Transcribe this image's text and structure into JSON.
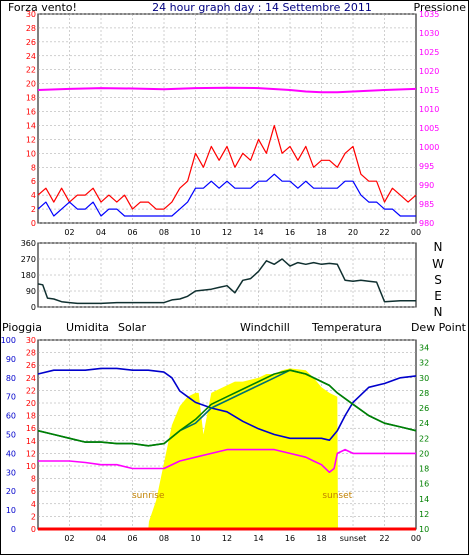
{
  "colors": {
    "wind_speed": "#ff0000",
    "wind_gust_avg": "#0000ff",
    "pressure": "#ff00ff",
    "rain": "#ff0000",
    "humidity": "#0000cc",
    "solar": "#ffff00",
    "windchill": "#007070",
    "temperature": "#008000",
    "dew_point": "#ff00ff",
    "grid": "#a0a0a0"
  },
  "header": {
    "left_label": "Forza vento!",
    "title": "24 hour graph day : 14 Settembre 2011",
    "right_label": "Pressione"
  },
  "panel2": {
    "compass_labels": [
      "N",
      "W",
      "S",
      "E",
      "N"
    ]
  },
  "panel3": {
    "labels": {
      "rain": "Pioggia",
      "humidity": "Umidita",
      "solar": "Solar",
      "windchill": "Windchill",
      "temperature": "Temperatura",
      "dew_point": "Dew Point"
    },
    "sunrise_label": "sunrise",
    "sunset_label": "sunset",
    "sunset_tick_label": "sunset"
  },
  "chart_data": [
    {
      "type": "line",
      "name": "wind-speed-pressure",
      "x_unit": "hour",
      "xlim": [
        0,
        24
      ],
      "x_ticks": [
        "02",
        "04",
        "06",
        "08",
        "10",
        "12",
        "14",
        "16",
        "18",
        "20",
        "22",
        "00"
      ],
      "left_axis": {
        "ylim": [
          0,
          30
        ],
        "ticks": [
          0,
          2,
          4,
          6,
          8,
          10,
          12,
          14,
          16,
          18,
          20,
          22,
          24,
          26,
          28,
          30
        ]
      },
      "right_axis": {
        "ylim": [
          980,
          1035
        ],
        "ticks": [
          980,
          985,
          990,
          995,
          1000,
          1005,
          1010,
          1015,
          1020,
          1025,
          1030,
          1035
        ]
      },
      "series": [
        {
          "key": "wind_speed",
          "axis": "left",
          "x": [
            0,
            0.5,
            1,
            1.5,
            2,
            2.5,
            3,
            3.5,
            4,
            4.5,
            5,
            5.5,
            6,
            6.5,
            7,
            7.5,
            8,
            8.5,
            9,
            9.5,
            10,
            10.5,
            11,
            11.5,
            12,
            12.5,
            13,
            13.5,
            14,
            14.5,
            15,
            15.5,
            16,
            16.5,
            17,
            17.5,
            18,
            18.5,
            19,
            19.5,
            20,
            20.5,
            21,
            21.5,
            22,
            22.5,
            23,
            23.5,
            24
          ],
          "values": [
            4,
            5,
            3,
            5,
            3,
            4,
            4,
            5,
            3,
            4,
            3,
            4,
            2,
            3,
            3,
            2,
            2,
            3,
            5,
            6,
            10,
            8,
            11,
            9,
            11,
            8,
            10,
            9,
            12,
            10,
            14,
            10,
            11,
            9,
            11,
            8,
            9,
            9,
            8,
            10,
            11,
            7,
            6,
            6,
            3,
            5,
            4,
            3,
            4
          ]
        },
        {
          "key": "wind_gust_avg",
          "axis": "left",
          "x": [
            0,
            0.5,
            1,
            1.5,
            2,
            2.5,
            3,
            3.5,
            4,
            4.5,
            5,
            5.5,
            6,
            6.5,
            7,
            7.5,
            8,
            8.5,
            9,
            9.5,
            10,
            10.5,
            11,
            11.5,
            12,
            12.5,
            13,
            13.5,
            14,
            14.5,
            15,
            15.5,
            16,
            16.5,
            17,
            17.5,
            18,
            18.5,
            19,
            19.5,
            20,
            20.5,
            21,
            21.5,
            22,
            22.5,
            23,
            23.5,
            24
          ],
          "values": [
            2,
            3,
            1,
            2,
            3,
            2,
            2,
            3,
            1,
            2,
            2,
            1,
            1,
            1,
            1,
            1,
            1,
            1,
            2,
            3,
            5,
            5,
            6,
            5,
            6,
            5,
            5,
            5,
            6,
            6,
            7,
            6,
            6,
            5,
            6,
            5,
            5,
            5,
            5,
            6,
            6,
            4,
            3,
            3,
            2,
            2,
            1,
            1,
            1
          ]
        },
        {
          "key": "pressure",
          "axis": "right",
          "x": [
            0,
            2,
            4,
            6,
            8,
            10,
            12,
            14,
            16,
            17,
            18,
            19,
            20,
            22,
            24
          ],
          "values": [
            1015.0,
            1015.3,
            1015.5,
            1015.4,
            1015.2,
            1015.5,
            1015.6,
            1015.5,
            1015.0,
            1014.6,
            1014.4,
            1014.4,
            1014.6,
            1015.0,
            1015.3
          ]
        }
      ]
    },
    {
      "type": "line",
      "name": "wind-direction",
      "x_unit": "hour",
      "xlim": [
        0,
        24
      ],
      "ylim": [
        0,
        360
      ],
      "y_ticks": [
        0,
        90,
        180,
        270,
        360
      ],
      "series": [
        {
          "key": "wind_direction",
          "x": [
            0,
            0.3,
            0.6,
            1,
            1.5,
            2,
            2.5,
            3,
            4,
            5,
            6,
            7,
            8,
            8.5,
            9,
            9.5,
            10,
            10.5,
            11,
            11.5,
            12,
            12.5,
            13,
            13.5,
            14,
            14.5,
            15,
            15.5,
            16,
            16.5,
            17,
            17.5,
            18,
            18.5,
            19,
            19.5,
            20,
            20.5,
            21,
            21.5,
            22,
            23,
            24
          ],
          "values": [
            130,
            125,
            50,
            45,
            30,
            25,
            20,
            20,
            20,
            25,
            25,
            25,
            25,
            40,
            45,
            60,
            90,
            95,
            100,
            110,
            120,
            80,
            150,
            160,
            200,
            260,
            240,
            270,
            230,
            250,
            240,
            250,
            240,
            245,
            240,
            150,
            145,
            150,
            145,
            140,
            30,
            35,
            35
          ]
        }
      ]
    },
    {
      "type": "area",
      "name": "humidity-temperature",
      "x_unit": "hour",
      "xlim": [
        0,
        24
      ],
      "x_ticks": [
        "02",
        "04",
        "06",
        "08",
        "10",
        "12",
        "14",
        "16",
        "18",
        "sunset",
        "22",
        "00"
      ],
      "axes": {
        "rain": {
          "ylim": [
            0,
            30
          ],
          "ticks": [
            0,
            2,
            4,
            6,
            8,
            10,
            12,
            14,
            16,
            18,
            20,
            22,
            24,
            26,
            28,
            30
          ]
        },
        "humidity": {
          "ylim": [
            0,
            100
          ],
          "ticks": [
            0,
            10,
            20,
            30,
            40,
            50,
            60,
            70,
            80,
            90,
            100
          ]
        },
        "temperature": {
          "ylim": [
            10,
            35
          ],
          "ticks": [
            10,
            12,
            14,
            16,
            18,
            20,
            22,
            24,
            26,
            28,
            30,
            32,
            34
          ]
        }
      },
      "series": [
        {
          "key": "humidity",
          "axis": "humidity",
          "x": [
            0,
            1,
            2,
            3,
            4,
            5,
            6,
            7,
            8,
            8.5,
            9,
            9.5,
            10,
            11,
            12,
            13,
            14,
            15,
            16,
            17,
            18,
            18.5,
            19,
            19.5,
            20,
            21,
            22,
            23,
            24
          ],
          "values": [
            82,
            84,
            84,
            84,
            85,
            85,
            84,
            84,
            83,
            80,
            73,
            70,
            67,
            64,
            62,
            57,
            53,
            50,
            48,
            48,
            48,
            47,
            52,
            60,
            67,
            75,
            77,
            80,
            81
          ]
        },
        {
          "key": "solar",
          "axis": "humidity",
          "x": [
            0,
            7,
            7.05,
            7.5,
            8,
            8.5,
            9,
            9.5,
            10,
            10.2,
            10.5,
            11,
            11.5,
            12,
            12.5,
            13,
            14,
            14.5,
            15,
            15.5,
            16,
            17,
            17.5,
            18,
            18.5,
            19,
            19.05,
            24
          ],
          "values": [
            0,
            0,
            4,
            15,
            35,
            55,
            65,
            70,
            72,
            72,
            50,
            72,
            74,
            76,
            78,
            78,
            80,
            82,
            82,
            84,
            85,
            84,
            80,
            75,
            72,
            70,
            0,
            0
          ]
        },
        {
          "key": "windchill",
          "axis": "temperature",
          "x": [
            0,
            1,
            2,
            3,
            4,
            5,
            6,
            7,
            8,
            9,
            10,
            11,
            12,
            13,
            14,
            15,
            16,
            17,
            18,
            18.5,
            19,
            20,
            21,
            22,
            23,
            24
          ],
          "values": [
            23.0,
            22.5,
            22.0,
            21.5,
            21.5,
            21.3,
            21.3,
            21.0,
            21.3,
            23.0,
            24.0,
            26.0,
            27.0,
            28.0,
            29.0,
            30.0,
            31.0,
            30.5,
            29.5,
            29.0,
            28.0,
            26.5,
            25.0,
            24.0,
            23.5,
            23.0
          ]
        },
        {
          "key": "temperature",
          "axis": "temperature",
          "x": [
            0,
            1,
            2,
            3,
            4,
            5,
            6,
            7,
            8,
            9,
            10,
            11,
            12,
            13,
            14,
            15,
            16,
            17,
            18,
            18.5,
            19,
            20,
            21,
            22,
            23,
            24
          ],
          "values": [
            23.0,
            22.5,
            22.0,
            21.5,
            21.5,
            21.3,
            21.3,
            21.0,
            21.3,
            23.0,
            24.5,
            26.5,
            27.5,
            28.5,
            29.5,
            30.5,
            31.0,
            30.5,
            29.5,
            29.0,
            28.0,
            26.5,
            25.0,
            24.0,
            23.5,
            23.0
          ]
        },
        {
          "key": "dew_point",
          "axis": "temperature",
          "x": [
            0,
            1,
            2,
            3,
            4,
            5,
            6,
            7,
            8,
            9,
            10,
            11,
            12,
            13,
            14,
            15,
            16,
            17,
            17.5,
            18,
            18.5,
            18.8,
            19,
            19.5,
            20,
            21,
            22,
            23,
            24
          ],
          "values": [
            19.0,
            19.0,
            19.0,
            18.8,
            18.5,
            18.5,
            18.0,
            18.0,
            18.0,
            19.0,
            19.5,
            20.0,
            20.5,
            20.5,
            20.5,
            20.5,
            20.0,
            19.5,
            19.0,
            18.5,
            17.5,
            18.0,
            20.0,
            20.5,
            20.0,
            20.0,
            20.0,
            20.0,
            20.0
          ]
        },
        {
          "key": "rain",
          "axis": "rain",
          "x": [
            0,
            24
          ],
          "values": [
            0,
            0
          ]
        }
      ],
      "annotations": [
        {
          "label": "sunrise",
          "x": 7.0
        },
        {
          "label": "sunset",
          "x": 19.0
        }
      ]
    }
  ]
}
